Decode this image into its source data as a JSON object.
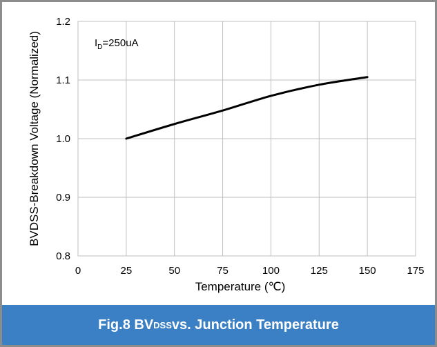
{
  "chart_data": {
    "type": "line",
    "x": [
      25,
      50,
      75,
      100,
      125,
      150
    ],
    "series": [
      {
        "values": [
          1.0,
          1.025,
          1.048,
          1.073,
          1.092,
          1.105
        ]
      }
    ],
    "xlabel": "Temperature (℃)",
    "ylabel": "BVDSS-Breakdown Voltage (Normalized)",
    "xlim": [
      0,
      175
    ],
    "ylim": [
      0.8,
      1.2
    ],
    "xticks": [
      "0",
      "25",
      "50",
      "75",
      "100",
      "125",
      "150",
      "175"
    ],
    "yticks": [
      "0.8",
      "0.9",
      "1.0",
      "1.1",
      "1.2"
    ],
    "grid": true,
    "line_color": "#000000",
    "grid_color": "#bfbfbf"
  },
  "annotation": {
    "main": "I",
    "sub": "D",
    "rest": "=250uA"
  },
  "caption": {
    "prefix": "Fig.8 BV",
    "sub": "DSS",
    "suffix": " vs. Junction Temperature"
  }
}
